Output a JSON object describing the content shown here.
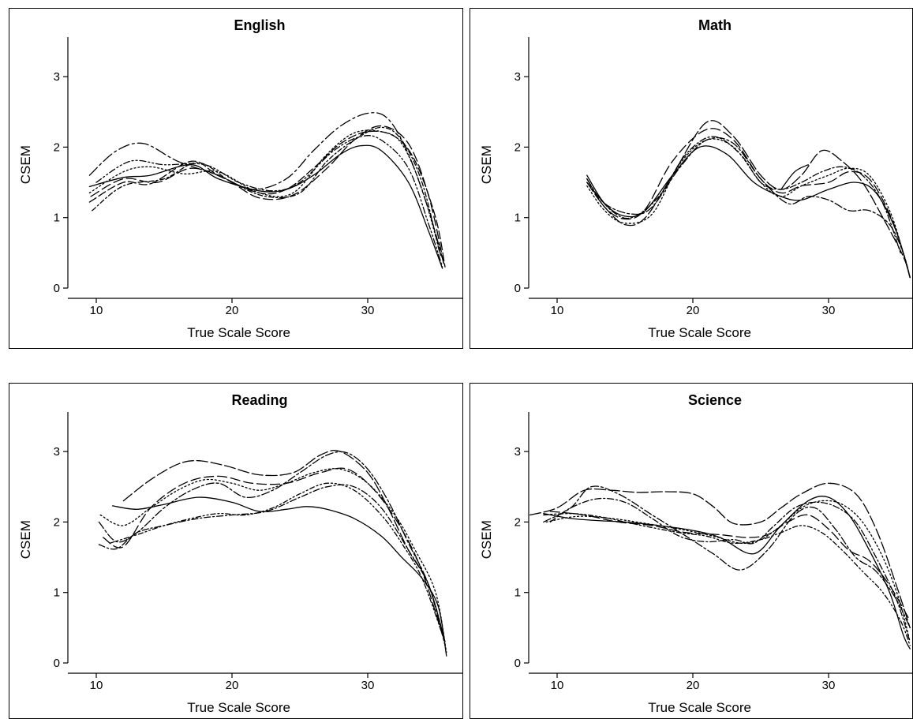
{
  "chart_data": [
    {
      "type": "line",
      "title": "English",
      "xlabel": "True Scale Score",
      "ylabel": "CSEM",
      "xlim": [
        8,
        36
      ],
      "ylim": [
        0,
        3.5
      ],
      "xticks": [
        10,
        20,
        30
      ],
      "yticks": [
        0,
        1,
        2,
        3
      ],
      "grid": false,
      "series": [
        {
          "x": [
            9.5,
            12,
            14,
            17,
            19,
            22,
            24,
            26,
            28,
            29.5,
            31,
            33,
            34.5,
            35.5
          ],
          "y": [
            1.44,
            1.57,
            1.6,
            1.75,
            1.55,
            1.38,
            1.4,
            1.6,
            1.9,
            2.02,
            1.95,
            1.5,
            0.8,
            0.28
          ],
          "dash": "none"
        },
        {
          "x": [
            9.5,
            12,
            14,
            17,
            19,
            22,
            24,
            26,
            28,
            30,
            32,
            33.5,
            35,
            35.7
          ],
          "y": [
            1.22,
            1.5,
            1.48,
            1.8,
            1.6,
            1.35,
            1.4,
            1.7,
            2.05,
            2.22,
            2.15,
            1.8,
            1.0,
            0.3
          ],
          "dash": "10 4"
        },
        {
          "x": [
            9.5,
            11.5,
            13.5,
            16,
            19,
            21.5,
            24,
            26,
            28,
            30,
            31.5,
            33,
            34.5,
            35.6
          ],
          "y": [
            1.6,
            1.95,
            2.05,
            1.8,
            1.6,
            1.4,
            1.55,
            1.95,
            2.3,
            2.48,
            2.4,
            1.9,
            1.1,
            0.35
          ],
          "dash": "14 4 3 4"
        },
        {
          "x": [
            9.7,
            12,
            15,
            17.5,
            20,
            22.5,
            25,
            27,
            29,
            31,
            32.5,
            34,
            35.3
          ],
          "y": [
            1.1,
            1.45,
            1.55,
            1.78,
            1.5,
            1.3,
            1.35,
            1.8,
            2.1,
            2.28,
            2.1,
            1.5,
            0.5
          ],
          "dash": "6 3 2 3"
        },
        {
          "x": [
            9.5,
            12,
            14,
            16.5,
            19,
            22,
            24.5,
            27,
            29,
            31,
            32.5,
            34,
            35.4
          ],
          "y": [
            1.35,
            1.65,
            1.72,
            1.62,
            1.65,
            1.35,
            1.35,
            1.9,
            2.2,
            2.22,
            2.05,
            1.4,
            0.45
          ],
          "dash": "2 3"
        },
        {
          "x": [
            10,
            12.5,
            15,
            18,
            20.5,
            23,
            25,
            27.5,
            29.5,
            31,
            33,
            34.5,
            35.5
          ],
          "y": [
            1.5,
            1.8,
            1.75,
            1.75,
            1.5,
            1.38,
            1.5,
            1.95,
            2.15,
            2.1,
            1.7,
            0.9,
            0.3
          ],
          "dash": "8 3 2 3 2 3"
        },
        {
          "x": [
            9.6,
            12,
            14.5,
            17,
            19.5,
            22,
            24.5,
            27,
            29,
            31,
            33,
            34.5,
            35.6
          ],
          "y": [
            1.3,
            1.55,
            1.5,
            1.7,
            1.55,
            1.28,
            1.32,
            1.7,
            2.1,
            2.3,
            2.05,
            1.3,
            0.35
          ],
          "dash": "12 5"
        }
      ]
    },
    {
      "type": "line",
      "title": "Math",
      "xlabel": "True Scale Score",
      "ylabel": "CSEM",
      "xlim": [
        8,
        36
      ],
      "ylim": [
        0,
        3.5
      ],
      "xticks": [
        10,
        20,
        30
      ],
      "yticks": [
        0,
        1,
        2,
        3
      ],
      "grid": false,
      "series": [
        {
          "x": [
            12.2,
            13.5,
            15,
            16.5,
            18.5,
            20.5,
            22.5,
            24.5,
            26.5,
            28,
            30,
            32,
            33.5,
            35,
            36
          ],
          "y": [
            1.6,
            1.2,
            1.02,
            1.1,
            1.6,
            2.0,
            1.9,
            1.5,
            1.3,
            1.25,
            1.4,
            1.5,
            1.35,
            0.8,
            0.15
          ],
          "dash": "none"
        },
        {
          "x": [
            12.2,
            13.5,
            15,
            16.5,
            18.5,
            21,
            23,
            25,
            26.5,
            28,
            29.5,
            31,
            32.5,
            34,
            35.5,
            36
          ],
          "y": [
            1.5,
            1.15,
            0.9,
            1.0,
            1.6,
            2.35,
            2.15,
            1.6,
            1.4,
            1.6,
            1.95,
            1.8,
            1.5,
            1.0,
            0.45,
            0.15
          ],
          "dash": "14 4"
        },
        {
          "x": [
            12.2,
            13.5,
            15.5,
            17,
            19,
            21,
            23,
            25,
            27,
            28.5,
            30,
            31.5,
            33,
            34.5,
            35.5,
            36
          ],
          "y": [
            1.55,
            1.2,
            1.05,
            1.15,
            1.7,
            2.1,
            2.05,
            1.55,
            1.2,
            1.3,
            1.25,
            1.1,
            1.1,
            0.9,
            0.5,
            0.15
          ],
          "dash": "10 3 3 3"
        },
        {
          "x": [
            12.2,
            13.5,
            15,
            17,
            19,
            21,
            23,
            25,
            26.5,
            28,
            30,
            31.5,
            33,
            34.5,
            35.5,
            36
          ],
          "y": [
            1.45,
            1.1,
            0.92,
            1.05,
            1.75,
            2.1,
            2.0,
            1.5,
            1.3,
            1.45,
            1.6,
            1.7,
            1.6,
            1.1,
            0.5,
            0.15
          ],
          "dash": "2 3"
        },
        {
          "x": [
            12.2,
            14,
            15.5,
            17.5,
            19.5,
            21.5,
            23.5,
            25,
            26.5,
            28,
            29.5,
            31,
            32.5,
            34,
            35.3
          ],
          "y": [
            1.5,
            1.1,
            1.0,
            1.3,
            1.9,
            2.15,
            1.9,
            1.5,
            1.4,
            1.5,
            1.65,
            1.72,
            1.6,
            1.2,
            0.5
          ],
          "dash": "8 3 2 3"
        },
        {
          "x": [
            12.2,
            13.5,
            15,
            16.5,
            18.5,
            21,
            23,
            25,
            26.5,
            28,
            30,
            31.5,
            33,
            34.5,
            35.5,
            36
          ],
          "y": [
            1.55,
            1.15,
            0.98,
            1.12,
            1.8,
            2.25,
            2.1,
            1.55,
            1.35,
            1.45,
            1.5,
            1.65,
            1.55,
            1.05,
            0.5,
            0.15
          ],
          "dash": "12 5"
        },
        {
          "x": [
            26.5,
            27.5,
            28.5
          ],
          "y": [
            1.4,
            1.65,
            1.75
          ],
          "dash": "none"
        }
      ]
    },
    {
      "type": "line",
      "title": "Reading",
      "xlabel": "True Scale Score",
      "ylabel": "CSEM",
      "xlim": [
        8,
        36
      ],
      "ylim": [
        0,
        3.5
      ],
      "xticks": [
        10,
        20,
        30
      ],
      "yticks": [
        0,
        1,
        2,
        3
      ],
      "grid": false,
      "series": [
        {
          "x": [
            11.2,
            13,
            15,
            17.5,
            20,
            22,
            24,
            25.5,
            27,
            29,
            31,
            32.5,
            34,
            35.2,
            35.8
          ],
          "y": [
            2.23,
            2.18,
            2.25,
            2.35,
            2.28,
            2.15,
            2.18,
            2.22,
            2.18,
            2.05,
            1.8,
            1.5,
            1.2,
            0.8,
            0.1
          ],
          "dash": "none"
        },
        {
          "x": [
            12,
            14,
            16,
            17.5,
            19.5,
            22,
            24.5,
            26.5,
            28,
            30,
            31.5,
            33,
            34.5,
            35.7
          ],
          "y": [
            2.3,
            2.6,
            2.82,
            2.87,
            2.8,
            2.67,
            2.7,
            2.95,
            3.0,
            2.7,
            2.2,
            1.6,
            1.1,
            0.3
          ],
          "dash": "14 4"
        },
        {
          "x": [
            10.2,
            11.5,
            13,
            15,
            17,
            19,
            21,
            23,
            25,
            27,
            28.5,
            30,
            31.5,
            33,
            34.5,
            35.7
          ],
          "y": [
            2.0,
            1.72,
            1.85,
            2.2,
            2.45,
            2.55,
            2.35,
            2.45,
            2.7,
            2.95,
            2.98,
            2.75,
            2.3,
            1.7,
            1.1,
            0.25
          ],
          "dash": "10 3 3 3"
        },
        {
          "x": [
            10.2,
            11.5,
            13,
            15,
            17.5,
            20,
            22.5,
            25,
            27,
            29,
            31,
            33,
            34.5,
            35.7
          ],
          "y": [
            1.68,
            1.62,
            1.85,
            1.95,
            2.05,
            2.1,
            2.15,
            2.35,
            2.5,
            2.5,
            2.2,
            1.6,
            1.1,
            0.3
          ],
          "dash": "8 3 2 3"
        },
        {
          "x": [
            10.3,
            12,
            14,
            16,
            18,
            20,
            22,
            24,
            26,
            28,
            30,
            32,
            33.5,
            35,
            35.8
          ],
          "y": [
            2.1,
            1.95,
            2.2,
            2.45,
            2.6,
            2.55,
            2.45,
            2.55,
            2.7,
            2.75,
            2.55,
            2.1,
            1.6,
            1.0,
            0.15
          ],
          "dash": "2 3"
        },
        {
          "x": [
            10.5,
            12,
            14,
            16.5,
            19,
            21.5,
            24,
            26.5,
            28.5,
            30.5,
            32.5,
            34,
            35.5
          ],
          "y": [
            1.78,
            1.65,
            2.2,
            2.55,
            2.65,
            2.55,
            2.55,
            2.7,
            2.75,
            2.45,
            1.9,
            1.3,
            0.4
          ],
          "dash": "12 5"
        },
        {
          "x": [
            11,
            13,
            15,
            17,
            19,
            21,
            23,
            25,
            27,
            29,
            31,
            32.5,
            34,
            35.6
          ],
          "y": [
            1.7,
            1.82,
            1.95,
            2.05,
            2.12,
            2.1,
            2.2,
            2.4,
            2.55,
            2.45,
            2.1,
            1.7,
            1.2,
            0.35
          ],
          "dash": "6 3 2 3 2 3"
        }
      ]
    },
    {
      "type": "line",
      "title": "Science",
      "xlabel": "True Scale Score",
      "ylabel": "CSEM",
      "xlim": [
        8,
        36
      ],
      "ylim": [
        0,
        3.5
      ],
      "xticks": [
        10,
        20,
        30
      ],
      "yticks": [
        0,
        1,
        2,
        3
      ],
      "grid": false,
      "series": [
        {
          "x": [
            9,
            11,
            13,
            15,
            17.5,
            20,
            22,
            24.5,
            26.5,
            28.5,
            30,
            31.5,
            33,
            34.5,
            35.5,
            36
          ],
          "y": [
            2.12,
            2.05,
            2.02,
            2.0,
            1.95,
            1.88,
            1.78,
            1.55,
            1.95,
            2.3,
            2.35,
            2.1,
            1.6,
            1.0,
            0.4,
            0.2
          ],
          "dash": "none"
        },
        {
          "x": [
            8,
            10,
            12,
            14,
            16,
            18,
            20,
            21.5,
            23,
            25,
            26.5,
            28,
            30,
            32,
            33.5,
            35,
            36
          ],
          "y": [
            2.1,
            2.2,
            2.45,
            2.45,
            2.42,
            2.43,
            2.4,
            2.22,
            1.98,
            2.0,
            2.2,
            2.4,
            2.55,
            2.4,
            1.9,
            1.1,
            0.5
          ],
          "dash": "14 4"
        },
        {
          "x": [
            9,
            11,
            12.5,
            14.5,
            17,
            19.5,
            21.5,
            23.5,
            25.5,
            27.5,
            29,
            30.5,
            32,
            33.5,
            35,
            36
          ],
          "y": [
            2.0,
            2.2,
            2.5,
            2.4,
            2.1,
            1.8,
            1.55,
            1.32,
            1.6,
            2.1,
            2.2,
            1.9,
            1.5,
            1.3,
            0.9,
            0.5
          ],
          "dash": "10 3 3 3"
        },
        {
          "x": [
            9.5,
            11,
            13,
            15,
            17,
            19,
            21,
            23,
            24.5,
            26,
            27.5,
            29,
            30.5,
            32,
            33.5,
            35,
            36
          ],
          "y": [
            2.0,
            2.2,
            2.33,
            2.28,
            2.05,
            1.8,
            1.72,
            1.75,
            1.7,
            1.95,
            2.2,
            2.28,
            2.22,
            2.0,
            1.5,
            0.9,
            0.3
          ],
          "dash": "8 3 2 3"
        },
        {
          "x": [
            9.2,
            11.5,
            14,
            16.5,
            19,
            21.5,
            23.5,
            25,
            26.5,
            28,
            29.5,
            31,
            32.5,
            34,
            35.2,
            36
          ],
          "y": [
            2.0,
            2.08,
            2.05,
            1.98,
            1.9,
            1.8,
            1.7,
            1.75,
            1.95,
            2.2,
            2.3,
            2.25,
            2.0,
            1.5,
            0.9,
            0.3
          ],
          "dash": "2 3"
        },
        {
          "x": [
            9.5,
            12,
            14.5,
            17,
            19.5,
            22,
            24,
            25.5,
            27,
            28.5,
            30,
            31.5,
            33,
            34.5,
            36
          ],
          "y": [
            2.15,
            2.1,
            2.0,
            1.95,
            1.85,
            1.82,
            1.78,
            1.82,
            2.0,
            2.1,
            1.9,
            1.6,
            1.45,
            1.1,
            0.6
          ],
          "dash": "12 5"
        },
        {
          "x": [
            9,
            11,
            13,
            15,
            17,
            19,
            21,
            23,
            25,
            26.5,
            28,
            29.5,
            31,
            32.5,
            34,
            35.3,
            36
          ],
          "y": [
            2.1,
            2.12,
            2.08,
            2.0,
            1.92,
            1.85,
            1.8,
            1.7,
            1.75,
            1.85,
            1.95,
            1.85,
            1.6,
            1.3,
            1.0,
            0.6,
            0.25
          ],
          "dash": "6 3 2 3 2 3"
        }
      ]
    }
  ]
}
